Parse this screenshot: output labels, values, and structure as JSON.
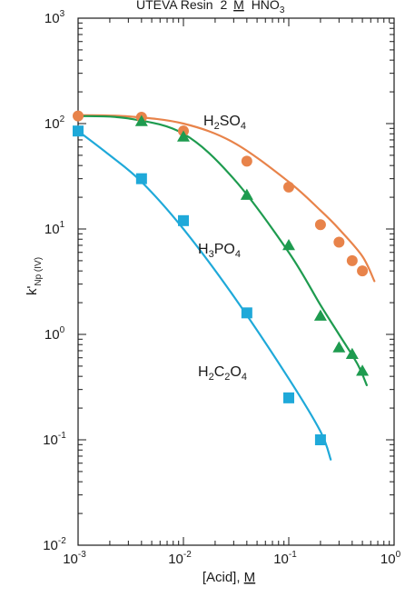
{
  "chart_data": {
    "type": "line",
    "title_parts": {
      "prefix": "UTEVA Resin",
      "conc": "2",
      "molar": "M",
      "acid_base": "HNO",
      "acid_sub": "3"
    },
    "ylabel_parts": {
      "k": "k'",
      "sub": "Np (IV)"
    },
    "xlabel_parts": {
      "prefix": "[Acid], ",
      "molar": "M"
    },
    "xscale": "log",
    "yscale": "log",
    "xlim": [
      0.001,
      1
    ],
    "ylim": [
      0.01,
      1000
    ],
    "x_ticks": [
      {
        "base": "10",
        "exp": "-3"
      },
      {
        "base": "10",
        "exp": "-2"
      },
      {
        "base": "10",
        "exp": "-1"
      },
      {
        "base": "10",
        "exp": "0"
      }
    ],
    "y_ticks": [
      {
        "base": "10",
        "exp": "-2"
      },
      {
        "base": "10",
        "exp": "-1"
      },
      {
        "base": "10",
        "exp": "0"
      },
      {
        "base": "10",
        "exp": "1"
      },
      {
        "base": "10",
        "exp": "2"
      },
      {
        "base": "10",
        "exp": "3"
      }
    ],
    "series": [
      {
        "name_parts": [
          {
            "t": "H"
          },
          {
            "t": "2",
            "sub": true
          },
          {
            "t": "SO"
          },
          {
            "t": "4",
            "sub": true
          }
        ],
        "color": "#e8834a",
        "marker": "circle",
        "points": [
          [
            0.001,
            118
          ],
          [
            0.004,
            115
          ],
          [
            0.01,
            85
          ],
          [
            0.04,
            44
          ],
          [
            0.1,
            25
          ],
          [
            0.2,
            11
          ],
          [
            0.3,
            7.5
          ],
          [
            0.4,
            5
          ],
          [
            0.5,
            4
          ]
        ],
        "fit": [
          [
            0.001,
            120
          ],
          [
            0.003,
            117
          ],
          [
            0.01,
            100
          ],
          [
            0.03,
            66
          ],
          [
            0.1,
            28
          ],
          [
            0.2,
            15
          ],
          [
            0.3,
            10
          ],
          [
            0.5,
            5.5
          ],
          [
            0.65,
            3.2
          ]
        ]
      },
      {
        "name_parts": [
          {
            "t": "H"
          },
          {
            "t": "3",
            "sub": true
          },
          {
            "t": "PO"
          },
          {
            "t": "4",
            "sub": true
          }
        ],
        "color": "#1e9b4f",
        "marker": "triangle",
        "points": [
          [
            0.004,
            105
          ],
          [
            0.01,
            75
          ],
          [
            0.04,
            21
          ],
          [
            0.1,
            7
          ],
          [
            0.2,
            1.5
          ],
          [
            0.3,
            0.75
          ],
          [
            0.4,
            0.65
          ],
          [
            0.5,
            0.45
          ]
        ],
        "fit": [
          [
            0.001,
            118
          ],
          [
            0.003,
            112
          ],
          [
            0.01,
            80
          ],
          [
            0.03,
            30
          ],
          [
            0.1,
            6
          ],
          [
            0.2,
            1.9
          ],
          [
            0.3,
            1.0
          ],
          [
            0.45,
            0.52
          ],
          [
            0.55,
            0.33
          ]
        ]
      },
      {
        "name_parts": [
          {
            "t": "H"
          },
          {
            "t": "2",
            "sub": true
          },
          {
            "t": "C"
          },
          {
            "t": "2",
            "sub": true
          },
          {
            "t": "O"
          },
          {
            "t": "4",
            "sub": true
          }
        ],
        "color": "#1fa9d9",
        "marker": "square",
        "points": [
          [
            0.001,
            85
          ],
          [
            0.004,
            30
          ],
          [
            0.01,
            12
          ],
          [
            0.04,
            1.6
          ],
          [
            0.1,
            0.25
          ],
          [
            0.2,
            0.1
          ]
        ],
        "fit": [
          [
            0.001,
            85
          ],
          [
            0.002,
            50
          ],
          [
            0.004,
            28
          ],
          [
            0.01,
            10
          ],
          [
            0.03,
            2.3
          ],
          [
            0.1,
            0.38
          ],
          [
            0.2,
            0.12
          ],
          [
            0.25,
            0.065
          ]
        ]
      }
    ]
  }
}
